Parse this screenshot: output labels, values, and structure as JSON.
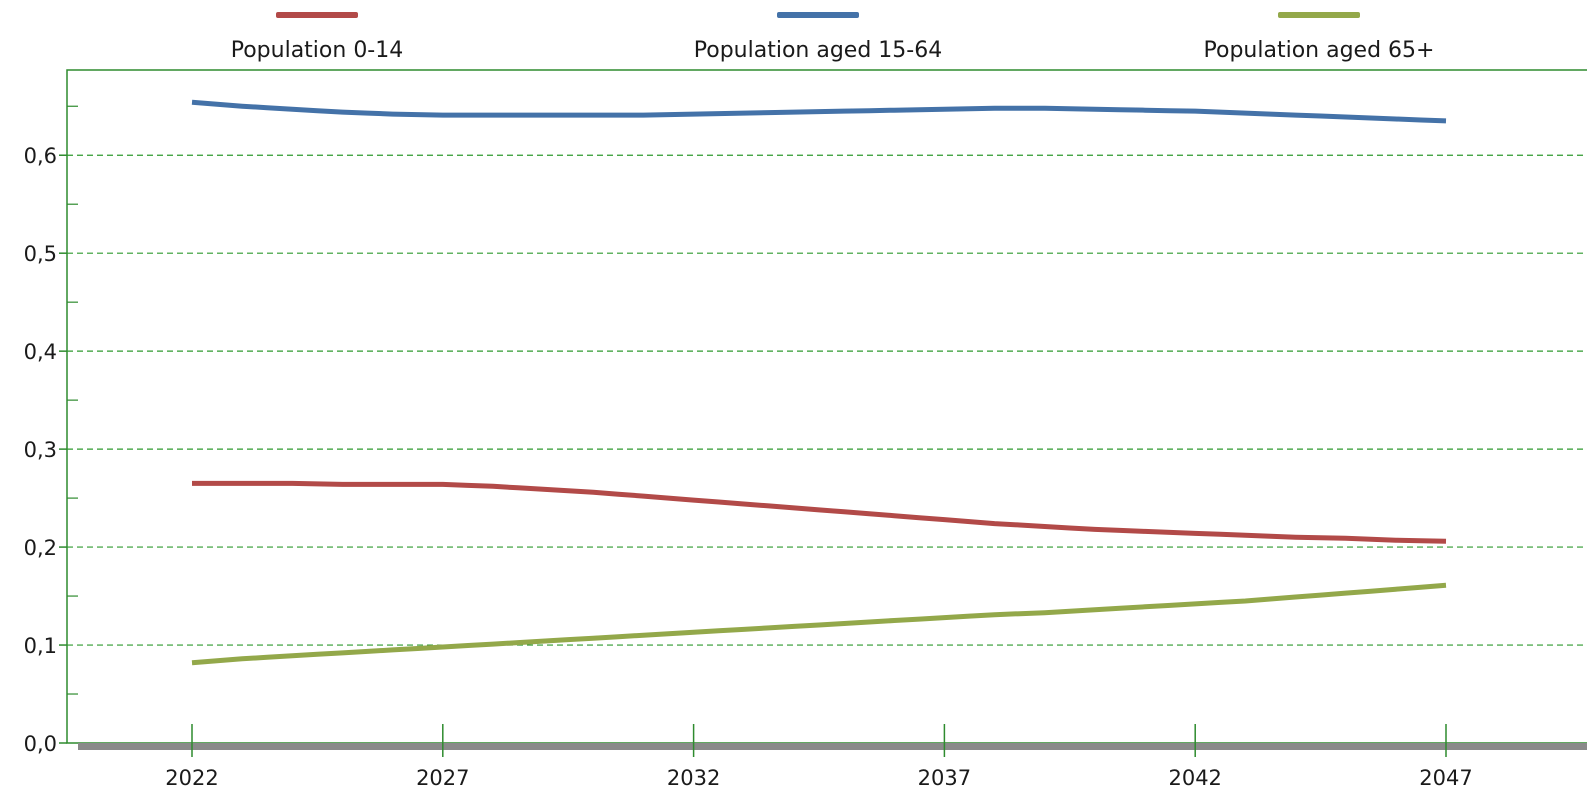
{
  "chart_data": {
    "type": "line",
    "x": [
      2022,
      2023,
      2024,
      2025,
      2026,
      2027,
      2028,
      2029,
      2030,
      2031,
      2032,
      2033,
      2034,
      2035,
      2036,
      2037,
      2038,
      2039,
      2040,
      2041,
      2042,
      2043,
      2044,
      2045,
      2046,
      2047
    ],
    "x_ticks": [
      "2022",
      "2027",
      "2032",
      "2037",
      "2042",
      "2047"
    ],
    "y_ticks": [
      "0,0",
      "0,1",
      "0,2",
      "0,3",
      "0,4",
      "0,5",
      "0,6"
    ],
    "ylim": [
      0,
      0.687
    ],
    "grid": "horizontal dashed",
    "legend_position": "top",
    "series": [
      {
        "name": "Population 0-14",
        "color": "#b24a48",
        "values": [
          0.265,
          0.265,
          0.265,
          0.264,
          0.264,
          0.264,
          0.262,
          0.259,
          0.256,
          0.252,
          0.248,
          0.244,
          0.24,
          0.236,
          0.232,
          0.228,
          0.224,
          0.221,
          0.218,
          0.216,
          0.214,
          0.212,
          0.21,
          0.209,
          0.207,
          0.206
        ]
      },
      {
        "name": "Population aged 15-64",
        "color": "#4472a8",
        "values": [
          0.654,
          0.65,
          0.647,
          0.644,
          0.642,
          0.641,
          0.641,
          0.641,
          0.641,
          0.641,
          0.642,
          0.643,
          0.644,
          0.645,
          0.646,
          0.647,
          0.648,
          0.648,
          0.647,
          0.646,
          0.645,
          0.643,
          0.641,
          0.639,
          0.637,
          0.635
        ]
      },
      {
        "name": "Population aged 65+",
        "color": "#93a84a",
        "values": [
          0.082,
          0.086,
          0.089,
          0.092,
          0.095,
          0.098,
          0.101,
          0.104,
          0.107,
          0.11,
          0.113,
          0.116,
          0.119,
          0.122,
          0.125,
          0.128,
          0.131,
          0.133,
          0.136,
          0.139,
          0.142,
          0.145,
          0.149,
          0.153,
          0.157,
          0.161
        ]
      }
    ]
  }
}
